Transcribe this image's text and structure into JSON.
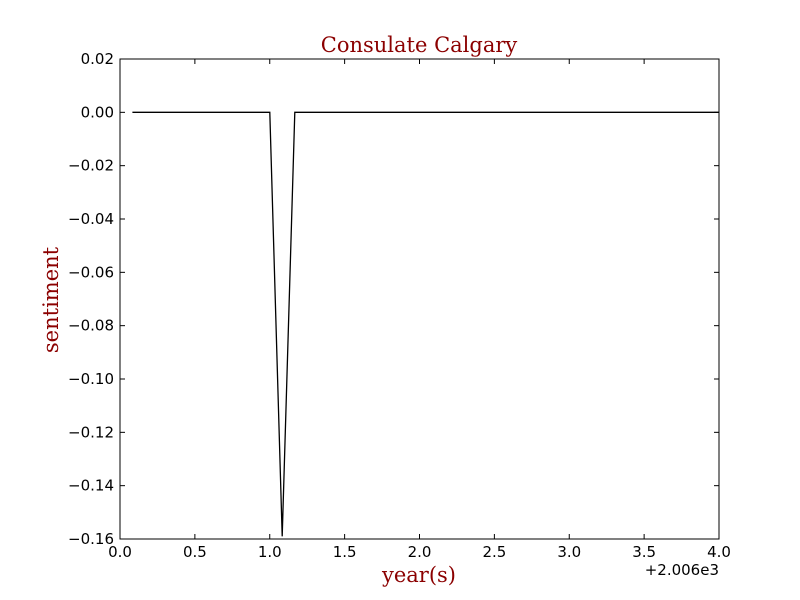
{
  "chart_data": {
    "type": "line",
    "title": "Consulate Calgary",
    "xlabel": "year(s)",
    "ylabel": "sentiment",
    "x_offset_label": "+2.006e3",
    "xlim": [
      0.0,
      4.0
    ],
    "ylim": [
      -0.16,
      0.02
    ],
    "grid": false,
    "x_ticks": [
      0.0,
      0.5,
      1.0,
      1.5,
      2.0,
      2.5,
      3.0,
      3.5,
      4.0
    ],
    "x_tick_labels": [
      "0.0",
      "0.5",
      "1.0",
      "1.5",
      "2.0",
      "2.5",
      "3.0",
      "3.5",
      "4.0"
    ],
    "y_ticks": [
      0.02,
      0.0,
      -0.02,
      -0.04,
      -0.06,
      -0.08,
      -0.1,
      -0.12,
      -0.14,
      -0.16
    ],
    "y_tick_labels": [
      "0.02",
      "0.00",
      "−0.02",
      "−0.04",
      "−0.06",
      "−0.08",
      "−0.10",
      "−0.12",
      "−0.14",
      "−0.16"
    ],
    "series": [
      {
        "color": "#000000",
        "x": [
          0.083,
          1.0,
          1.083,
          1.167,
          2.0,
          3.0,
          4.0
        ],
        "y": [
          0.0,
          0.0,
          -0.159,
          0.0,
          0.0,
          0.0,
          0.0
        ]
      }
    ]
  }
}
